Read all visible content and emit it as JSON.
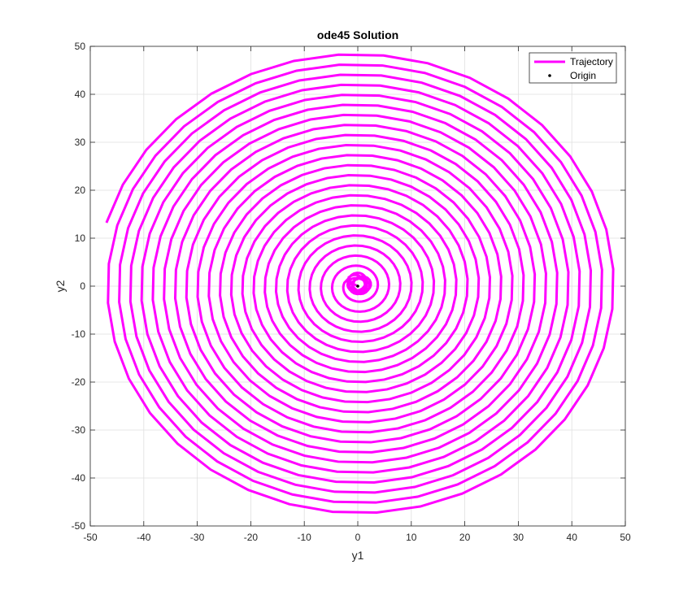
{
  "chart_data": {
    "type": "line",
    "title": "ode45 Solution",
    "xlabel": "y1",
    "ylabel": "y2",
    "xlim": [
      -50,
      50
    ],
    "ylim": [
      -50,
      50
    ],
    "xticks": [
      -50,
      -40,
      -30,
      -20,
      -10,
      0,
      10,
      20,
      30,
      40,
      50
    ],
    "yticks": [
      -50,
      -40,
      -30,
      -20,
      -10,
      0,
      10,
      20,
      30,
      40,
      50
    ],
    "grid": true,
    "legend_position": "top-right",
    "series": [
      {
        "name": "Trajectory",
        "color": "#ff00ff",
        "style": "spiral",
        "start": [
          -47.6,
          13.4
        ],
        "outer_radius": 48.8,
        "inner_radius": 2.6,
        "turns": 22,
        "inner_loop_center": [
          0.2,
          0.5
        ],
        "inner_loop_radius": 2.2
      },
      {
        "name": "Origin",
        "color": "#000000",
        "style": "marker",
        "points": [
          [
            0,
            0
          ]
        ]
      }
    ]
  }
}
